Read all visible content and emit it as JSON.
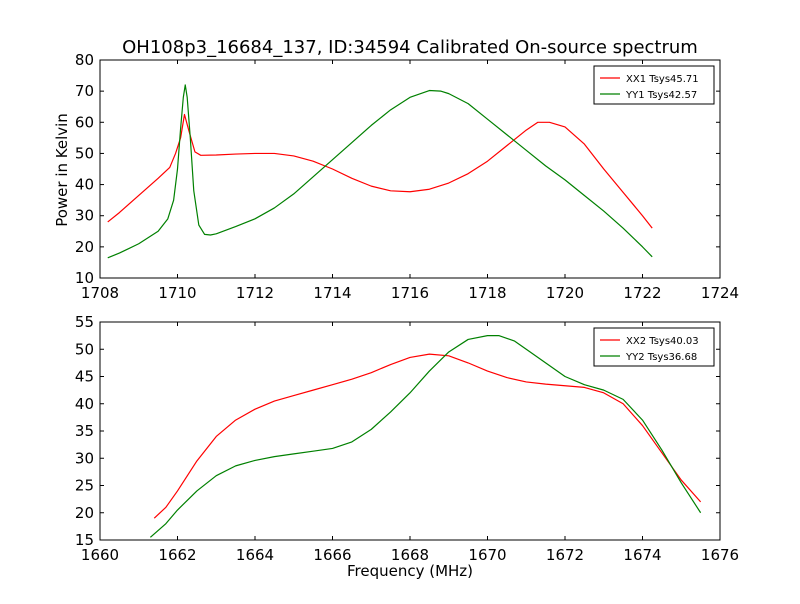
{
  "title": "OH108p3_16684_137, ID:34594 Calibrated On-source spectrum",
  "ylabel": "Power in Kelvin",
  "xlabel": "Frequency (MHz)",
  "chart_data": [
    {
      "type": "line",
      "xlim": [
        1708,
        1724
      ],
      "ylim": [
        10,
        80
      ],
      "xticks": [
        1708,
        1710,
        1712,
        1714,
        1716,
        1718,
        1720,
        1722,
        1724
      ],
      "yticks": [
        10,
        20,
        30,
        40,
        50,
        60,
        70,
        80
      ],
      "legend_position": "top-right",
      "series": [
        {
          "name": "XX1 Tsys45.71",
          "color": "#ff0000",
          "points": [
            [
              1708.2,
              28
            ],
            [
              1708.5,
              31
            ],
            [
              1709,
              36.5
            ],
            [
              1709.5,
              42
            ],
            [
              1709.8,
              45.5
            ],
            [
              1709.95,
              50
            ],
            [
              1710.08,
              55
            ],
            [
              1710.18,
              62.5
            ],
            [
              1710.3,
              57
            ],
            [
              1710.45,
              50.5
            ],
            [
              1710.6,
              49.4
            ],
            [
              1711,
              49.5
            ],
            [
              1711.5,
              49.8
            ],
            [
              1712,
              50
            ],
            [
              1712.5,
              50
            ],
            [
              1713,
              49.2
            ],
            [
              1713.5,
              47.5
            ],
            [
              1714,
              45
            ],
            [
              1714.5,
              42
            ],
            [
              1715,
              39.5
            ],
            [
              1715.5,
              38
            ],
            [
              1716,
              37.7
            ],
            [
              1716.5,
              38.5
            ],
            [
              1717,
              40.5
            ],
            [
              1717.5,
              43.5
            ],
            [
              1718,
              47.5
            ],
            [
              1718.5,
              52.5
            ],
            [
              1719,
              57.5
            ],
            [
              1719.3,
              60
            ],
            [
              1719.6,
              60
            ],
            [
              1720,
              58.5
            ],
            [
              1720.5,
              53
            ],
            [
              1721,
              45
            ],
            [
              1721.5,
              37.5
            ],
            [
              1722,
              30
            ],
            [
              1722.25,
              26
            ]
          ]
        },
        {
          "name": "YY1 Tsys42.57",
          "color": "#008000",
          "points": [
            [
              1708.2,
              16.5
            ],
            [
              1708.5,
              18
            ],
            [
              1709,
              21
            ],
            [
              1709.5,
              25
            ],
            [
              1709.75,
              29
            ],
            [
              1709.9,
              35
            ],
            [
              1710.0,
              45
            ],
            [
              1710.08,
              58
            ],
            [
              1710.15,
              68
            ],
            [
              1710.2,
              72
            ],
            [
              1710.25,
              68
            ],
            [
              1710.33,
              55
            ],
            [
              1710.42,
              38
            ],
            [
              1710.55,
              27
            ],
            [
              1710.7,
              24
            ],
            [
              1710.85,
              23.8
            ],
            [
              1711,
              24.2
            ],
            [
              1711.5,
              26.5
            ],
            [
              1712,
              29
            ],
            [
              1712.5,
              32.5
            ],
            [
              1713,
              37
            ],
            [
              1713.5,
              42.5
            ],
            [
              1714,
              48
            ],
            [
              1714.5,
              53.5
            ],
            [
              1715,
              59
            ],
            [
              1715.5,
              64
            ],
            [
              1716,
              68
            ],
            [
              1716.5,
              70.2
            ],
            [
              1716.8,
              70
            ],
            [
              1717,
              69.2
            ],
            [
              1717.5,
              66
            ],
            [
              1718,
              61
            ],
            [
              1718.5,
              56
            ],
            [
              1719,
              51
            ],
            [
              1719.5,
              46
            ],
            [
              1720,
              41.5
            ],
            [
              1720.5,
              36.5
            ],
            [
              1721,
              31.5
            ],
            [
              1721.5,
              26
            ],
            [
              1722,
              20
            ],
            [
              1722.25,
              16.8
            ]
          ]
        }
      ]
    },
    {
      "type": "line",
      "xlim": [
        1660,
        1676
      ],
      "ylim": [
        15,
        55
      ],
      "xticks": [
        1660,
        1662,
        1664,
        1666,
        1668,
        1670,
        1672,
        1674,
        1676
      ],
      "yticks": [
        15,
        20,
        25,
        30,
        35,
        40,
        45,
        50,
        55
      ],
      "legend_position": "top-right",
      "series": [
        {
          "name": "XX2 Tsys40.03",
          "color": "#ff0000",
          "points": [
            [
              1661.4,
              19
            ],
            [
              1661.7,
              21
            ],
            [
              1662,
              24
            ],
            [
              1662.5,
              29.5
            ],
            [
              1663,
              34
            ],
            [
              1663.5,
              37
            ],
            [
              1664,
              39
            ],
            [
              1664.5,
              40.5
            ],
            [
              1665,
              41.5
            ],
            [
              1665.5,
              42.5
            ],
            [
              1666,
              43.5
            ],
            [
              1666.5,
              44.5
            ],
            [
              1667,
              45.7
            ],
            [
              1667.5,
              47.2
            ],
            [
              1668,
              48.5
            ],
            [
              1668.5,
              49.1
            ],
            [
              1669,
              48.8
            ],
            [
              1669.5,
              47.5
            ],
            [
              1670,
              46
            ],
            [
              1670.5,
              44.8
            ],
            [
              1671,
              44
            ],
            [
              1671.5,
              43.6
            ],
            [
              1672,
              43.3
            ],
            [
              1672.5,
              43
            ],
            [
              1673,
              42
            ],
            [
              1673.5,
              40
            ],
            [
              1674,
              36
            ],
            [
              1674.5,
              31
            ],
            [
              1675,
              26
            ],
            [
              1675.5,
              22
            ]
          ]
        },
        {
          "name": "YY2 Tsys36.68",
          "color": "#008000",
          "points": [
            [
              1661.3,
              15.5
            ],
            [
              1661.7,
              18
            ],
            [
              1662,
              20.5
            ],
            [
              1662.5,
              24
            ],
            [
              1663,
              26.8
            ],
            [
              1663.5,
              28.6
            ],
            [
              1664,
              29.6
            ],
            [
              1664.5,
              30.3
            ],
            [
              1665,
              30.8
            ],
            [
              1665.5,
              31.3
            ],
            [
              1666,
              31.8
            ],
            [
              1666.5,
              33
            ],
            [
              1667,
              35.3
            ],
            [
              1667.5,
              38.5
            ],
            [
              1668,
              42
            ],
            [
              1668.5,
              46
            ],
            [
              1669,
              49.5
            ],
            [
              1669.5,
              51.8
            ],
            [
              1670,
              52.5
            ],
            [
              1670.3,
              52.5
            ],
            [
              1670.7,
              51.5
            ],
            [
              1671,
              50
            ],
            [
              1671.5,
              47.5
            ],
            [
              1672,
              45
            ],
            [
              1672.5,
              43.5
            ],
            [
              1673,
              42.5
            ],
            [
              1673.5,
              40.8
            ],
            [
              1674,
              37
            ],
            [
              1674.5,
              31.5
            ],
            [
              1675,
              25.5
            ],
            [
              1675.5,
              20
            ]
          ]
        }
      ]
    }
  ]
}
